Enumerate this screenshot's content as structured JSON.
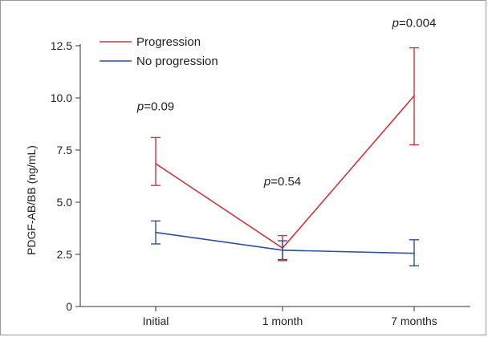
{
  "chart_data": {
    "type": "line",
    "title": "",
    "xlabel": "",
    "ylabel": "PDGF-AB/BB (ng/mL)",
    "categories": [
      "Initial",
      "1 month",
      "7 months"
    ],
    "ylim": [
      0,
      12.5
    ],
    "yticks": [
      "0",
      "2.5",
      "5.0",
      "7.5",
      "10.0",
      "12.5"
    ],
    "grid": false,
    "legend_position": "top-left",
    "series": [
      {
        "name": "Progression",
        "color": "#d4333a",
        "values": [
          6.85,
          2.8,
          10.1
        ],
        "err_low": [
          5.8,
          2.2,
          7.75
        ],
        "err_high": [
          8.1,
          3.4,
          12.4
        ]
      },
      {
        "name": "No progression",
        "color": "#2b4fa8",
        "values": [
          3.55,
          2.7,
          2.55
        ],
        "err_low": [
          3.0,
          2.25,
          1.95
        ],
        "err_high": [
          4.1,
          3.15,
          3.2
        ]
      }
    ],
    "annotations": [
      {
        "italic": "p",
        "text": "=0.09",
        "category": 0,
        "y": 9.4
      },
      {
        "italic": "p",
        "text": "=0.54",
        "category": 1,
        "y": 5.8
      },
      {
        "italic": "p",
        "text": "=0.004",
        "category": 2,
        "y": 13.4
      }
    ]
  }
}
